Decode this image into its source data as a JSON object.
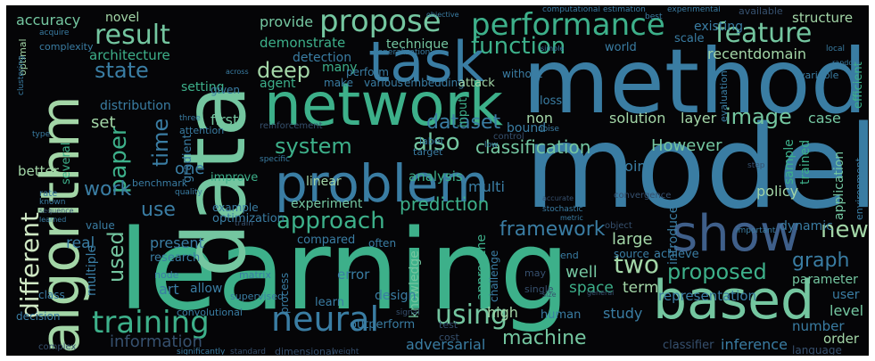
{
  "palette": {
    "background": "#050507",
    "teal_green": "#3db08a",
    "mint": "#74c6a0",
    "light_green": "#a3d6a7",
    "pale": "#cfe8c4",
    "teal": "#2a8c8f",
    "blue": "#3a7da3",
    "steel_blue": "#3f5f8a",
    "slate": "#36506e",
    "dark_slate": "#3a3f5c"
  },
  "words": {
    "model": "model",
    "learning": "learning",
    "method": "method",
    "data": "data",
    "network": "network",
    "algorithm": "algorithm",
    "problem": "problem",
    "task": "task",
    "based": "based",
    "show": "show",
    "neural": "neural",
    "training": "training",
    "performance": "performance",
    "propose": "propose",
    "result": "result",
    "feature": "feature",
    "function": "function",
    "approach": "approach",
    "system": "system",
    "different": "different",
    "paper": "paper",
    "deep": "deep",
    "state": "state",
    "time": "time",
    "dataset": "dataset",
    "also": "also",
    "image": "image",
    "classification": "classification",
    "framework": "framework",
    "prediction": "prediction",
    "proposed": "proposed",
    "graph": "graph",
    "using": "using",
    "two": "two",
    "new": "new",
    "machine": "machine",
    "used": "used",
    "use": "use",
    "work": "work",
    "information": "information",
    "However": "However",
    "accuracy": "accuracy",
    "novel": "novel",
    "architecture": "architecture",
    "setting": "setting",
    "distribution": "distribution",
    "provide": "provide",
    "demonstrate": "demonstrate",
    "technique": "technique",
    "detection": "detection",
    "many": "many",
    "structure": "structure",
    "existing": "existing",
    "recentdomain": "recentdomain",
    "experimental": "experimental",
    "available": "available",
    "first": "first",
    "set": "set",
    "one": "one",
    "system2": "linear",
    "experiment": "experiment",
    "analysis": "analysis",
    "solution": "solution",
    "layer": "layer",
    "point": "point",
    "case": "case",
    "policy": "policy",
    "sample": "sample",
    "trained": "trained",
    "application": "application",
    "introduce": "introduce",
    "large": "large",
    "source": "source",
    "achieve": "achieve",
    "well": "well",
    "space": "space",
    "term": "term",
    "representation": "representation",
    "parameter": "parameter",
    "user": "user",
    "level": "level",
    "number": "number",
    "order": "order",
    "language": "language",
    "study": "study",
    "human": "human",
    "high": "high",
    "knowledge": "knowledge",
    "approache": "approache",
    "challenge": "challenge",
    "design": "design",
    "learn": "learn",
    "error": "error",
    "process": "process",
    "outperform": "outperform",
    "test": "test",
    "cost": "cost",
    "adversarial": "adversarial",
    "classifier": "classifier",
    "inference": "inference",
    "real": "real",
    "present": "present",
    "research": "research",
    "art": "art",
    "allow": "allow",
    "multiple": "multiple",
    "better": "better",
    "several": "several",
    "gradient": "gradient",
    "improve": "improve",
    "benchmark": "benchmark",
    "example": "example",
    "optimization": "optimization",
    "real2": "value",
    "class": "class",
    "decision": "decision",
    "complex": "complex",
    "significantly": "significantly",
    "standard": "standard",
    "dimensional": "dimensional",
    "weight": "weight",
    "given": "given",
    "agent": "agent",
    "make": "make",
    "various": "various",
    "embedding": "embedding",
    "attack": "attack",
    "without": "without",
    "perform": "perform",
    "input": "input",
    "non": "non",
    "bound": "bound",
    "label": "label",
    "target": "target",
    "multi": "multi",
    "evaluation": "evaluation",
    "efficient": "efficient",
    "world": "world",
    "scale": "scale",
    "loss": "loss",
    "control": "control",
    "variable": "variable",
    "convergence": "convergence",
    "important": "important",
    "dynamic": "dynamic",
    "environment": "environment",
    "compared": "compared",
    "often": "often",
    "may": "may",
    "single": "single",
    "end": "end",
    "node": "node",
    "matrix": "matrix",
    "supervised": "supervised",
    "convolutional": "convolutional",
    "computational": "computational",
    "estimation": "estimation",
    "best": "best",
    "optimal": "optimal",
    "complexity": "complexity",
    "three": "three",
    "attention": "attention",
    "reinforcement": "reinforcement",
    "specific": "specific",
    "quality": "quality",
    "generalization": "generalization",
    "object": "object",
    "local": "local",
    "rate": "rate",
    "known": "known",
    "sequence": "sequence",
    "clustering": "clustering",
    "stochastic": "stochastic",
    "metric": "metric",
    "low": "low",
    "random": "random",
    "step": "step",
    "train": "train",
    "across": "across",
    "noise": "noise",
    "signal": "signal",
    "objective": "objective",
    "acquire": "acquire",
    "type": "type",
    "size": "size",
    "general": "general",
    "accurate": "accurate",
    "simple": "simple",
    "learned": "learned"
  }
}
